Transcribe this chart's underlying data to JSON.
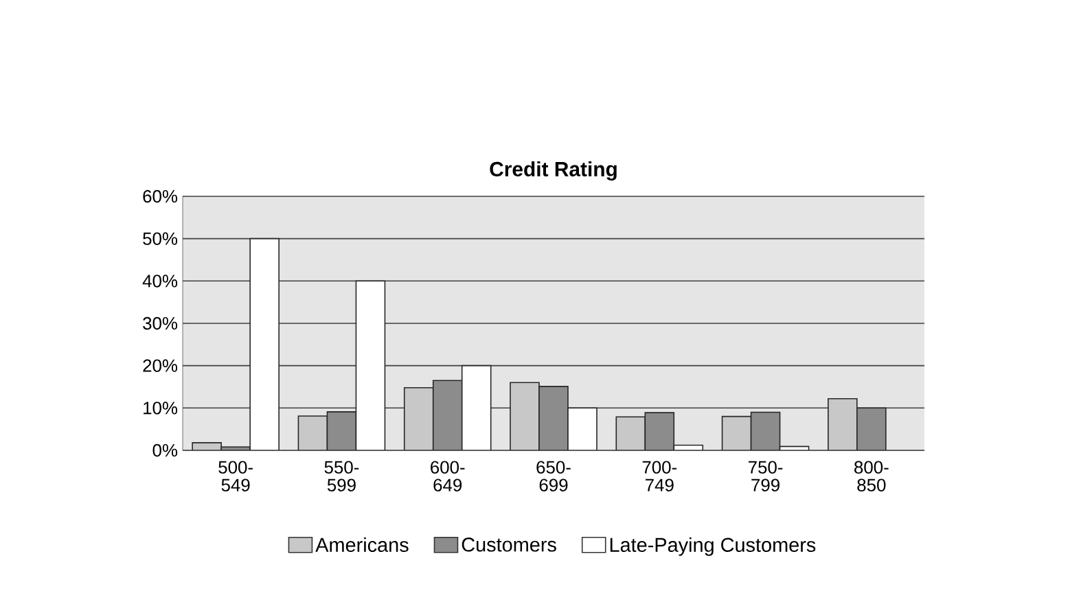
{
  "chart_data": {
    "type": "bar",
    "title": "Credit Rating",
    "categories": [
      "500-549",
      "550-599",
      "600-649",
      "650-699",
      "700-749",
      "750-799",
      "800-850"
    ],
    "series": [
      {
        "name": "Americans",
        "color": "#c8c8c8",
        "values": [
          1.8,
          8.1,
          14.8,
          16,
          7.9,
          8,
          12.2
        ]
      },
      {
        "name": "Customers",
        "color": "#8c8c8c",
        "values": [
          0.8,
          9.1,
          16.5,
          15.1,
          8.9,
          9,
          10
        ]
      },
      {
        "name": "Late-Paying Customers",
        "color": "#ffffff",
        "values": [
          50,
          40,
          20,
          10,
          1.2,
          0.9,
          null
        ]
      }
    ],
    "ylim": [
      0,
      60
    ],
    "yticks": [
      {
        "value": 0,
        "label": "0%"
      },
      {
        "value": 10,
        "label": "10%"
      },
      {
        "value": 20,
        "label": "20%"
      },
      {
        "value": 30,
        "label": "30%"
      },
      {
        "value": 40,
        "label": "40%"
      },
      {
        "value": 50,
        "label": "50%"
      },
      {
        "value": 60,
        "label": "60%"
      }
    ],
    "grid": "y",
    "legend": "bottom"
  }
}
